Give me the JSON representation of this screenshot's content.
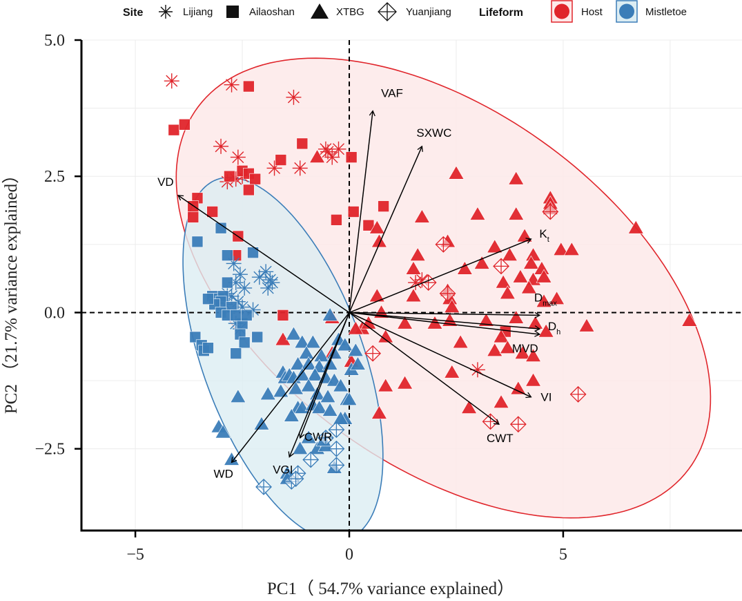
{
  "chart_data": {
    "type": "scatter",
    "subtype": "pca-biplot",
    "title": "",
    "xlabel": "PC1（ 54.7% variance explained）",
    "ylabel": "PC2 （21.7% variance explained）",
    "xlim": [
      -6.26,
      9.18
    ],
    "ylim": [
      -4.0,
      5.0
    ],
    "x_ticks": [
      -5,
      0,
      5
    ],
    "x_tick_labels": [
      "−5",
      "0",
      "5"
    ],
    "y_ticks": [
      -2.5,
      0.0,
      2.5,
      5.0
    ],
    "y_tick_labels": [
      "−2.5",
      "0.0",
      "2.5",
      "5.0"
    ],
    "grid": true,
    "reference_lines": {
      "x": 0,
      "y": 0,
      "style": "dashed"
    },
    "colors": {
      "Host": "#e0252b",
      "Mistletoe": "#3b7db8",
      "host_fill": "#fde9e9",
      "mistletoe_fill": "#dcedf3"
    },
    "legend": {
      "placement": "top",
      "site_title": "Site",
      "sites": [
        {
          "label": "Lijiang",
          "shape": "asterisk"
        },
        {
          "label": "Ailaoshan",
          "shape": "square"
        },
        {
          "label": "XTBG",
          "shape": "triangle"
        },
        {
          "label": "Yuanjiang",
          "shape": "diamond-plus"
        }
      ],
      "lifeform_title": "Lifeform",
      "lifeforms": [
        {
          "label": "Host",
          "color": "#e0252b"
        },
        {
          "label": "Mistletoe",
          "color": "#3b7db8"
        }
      ]
    },
    "ellipses": [
      {
        "group": "Host",
        "center": [
          2.2,
          0.45
        ],
        "semi_major": 6.7,
        "semi_minor": 3.45,
        "angle_deg": -25
      },
      {
        "group": "Mistletoe",
        "center": [
          -1.55,
          -0.85
        ],
        "semi_major": 3.65,
        "semi_minor": 1.8,
        "angle_deg": -62
      }
    ],
    "loadings": [
      {
        "label": "VAF",
        "sub": "",
        "x": 0.55,
        "y": 3.7
      },
      {
        "label": "SXWC",
        "sub": "",
        "x": 1.7,
        "y": 3.05
      },
      {
        "label": "VD",
        "sub": "",
        "x": -4.0,
        "y": 2.15
      },
      {
        "label": "K",
        "sub": "t",
        "x": 4.25,
        "y": 1.35
      },
      {
        "label": "D",
        "sub": "max",
        "x": 4.45,
        "y": -0.05
      },
      {
        "label": "D",
        "sub": "h",
        "x": 4.45,
        "y": -0.3
      },
      {
        "label": "MVD",
        "sub": "",
        "x": 4.45,
        "y": -0.4
      },
      {
        "label": "VI",
        "sub": "",
        "x": 4.25,
        "y": -1.55
      },
      {
        "label": "CWT",
        "sub": "",
        "x": 3.5,
        "y": -2.05
      },
      {
        "label": "CWR",
        "sub": "",
        "x": -1.15,
        "y": -2.3
      },
      {
        "label": "VGI",
        "sub": "",
        "x": -1.4,
        "y": -2.65
      },
      {
        "label": "WD",
        "sub": "",
        "x": -2.75,
        "y": -2.75
      }
    ],
    "series": [
      {
        "name": "Host-Lijiang",
        "lifeform": "Host",
        "site": "Lijiang",
        "points": [
          [
            -4.15,
            4.25
          ],
          [
            -2.75,
            4.18
          ],
          [
            -1.3,
            3.95
          ],
          [
            -3.0,
            3.05
          ],
          [
            -2.6,
            2.85
          ],
          [
            -1.15,
            2.65
          ],
          [
            -1.75,
            2.65
          ],
          [
            -0.55,
            3.0
          ],
          [
            -0.4,
            2.85
          ],
          [
            -2.5,
            2.5
          ],
          [
            -2.85,
            2.4
          ],
          [
            -2.65,
            2.45
          ],
          [
            -0.5,
            2.95
          ],
          [
            -0.25,
            3.0
          ],
          [
            1.55,
            0.55
          ],
          [
            1.7,
            0.6
          ],
          [
            3.0,
            -1.05
          ]
        ]
      },
      {
        "name": "Host-Ailaoshan",
        "lifeform": "Host",
        "site": "Ailaoshan",
        "points": [
          [
            -4.1,
            3.35
          ],
          [
            -3.85,
            3.45
          ],
          [
            -2.35,
            4.15
          ],
          [
            -1.1,
            3.1
          ],
          [
            -1.6,
            2.8
          ],
          [
            -2.8,
            2.5
          ],
          [
            -2.5,
            2.6
          ],
          [
            -2.35,
            2.55
          ],
          [
            -2.2,
            2.45
          ],
          [
            -2.35,
            2.25
          ],
          [
            -3.55,
            2.1
          ],
          [
            -3.65,
            1.95
          ],
          [
            -3.2,
            1.85
          ],
          [
            -3.65,
            1.75
          ],
          [
            0.05,
            2.85
          ],
          [
            0.1,
            1.85
          ],
          [
            -0.3,
            1.7
          ],
          [
            0.8,
            1.95
          ],
          [
            0.45,
            1.6
          ],
          [
            -2.6,
            1.4
          ],
          [
            -2.65,
            1.05
          ],
          [
            -1.55,
            -0.05
          ],
          [
            3.65,
            -0.35
          ]
        ]
      },
      {
        "name": "Host-XTBG",
        "lifeform": "Host",
        "site": "XTBG",
        "points": [
          [
            -0.75,
            2.85
          ],
          [
            2.5,
            2.55
          ],
          [
            3.9,
            2.45
          ],
          [
            4.7,
            2.1
          ],
          [
            4.7,
            2.0
          ],
          [
            4.7,
            1.9
          ],
          [
            3.0,
            1.8
          ],
          [
            3.9,
            1.8
          ],
          [
            1.7,
            1.75
          ],
          [
            4.1,
            1.4
          ],
          [
            6.7,
            1.55
          ],
          [
            0.65,
            1.55
          ],
          [
            2.3,
            1.3
          ],
          [
            3.4,
            1.2
          ],
          [
            0.7,
            1.3
          ],
          [
            1.6,
            1.05
          ],
          [
            4.3,
            1.05
          ],
          [
            3.75,
            1.05
          ],
          [
            4.95,
            1.15
          ],
          [
            5.2,
            1.15
          ],
          [
            2.7,
            0.8
          ],
          [
            3.1,
            0.9
          ],
          [
            1.5,
            0.8
          ],
          [
            4.25,
            0.9
          ],
          [
            4.5,
            0.8
          ],
          [
            2.3,
            0.4
          ],
          [
            4.0,
            0.65
          ],
          [
            4.3,
            0.6
          ],
          [
            4.55,
            0.65
          ],
          [
            3.6,
            0.55
          ],
          [
            4.2,
            0.45
          ],
          [
            0.65,
            0.3
          ],
          [
            1.5,
            0.3
          ],
          [
            2.35,
            0.25
          ],
          [
            3.7,
            0.35
          ],
          [
            4.85,
            0.25
          ],
          [
            4.55,
            0.2
          ],
          [
            2.4,
            0.1
          ],
          [
            3.9,
            -0.1
          ],
          [
            0.75,
            0.0
          ],
          [
            1.3,
            -0.2
          ],
          [
            2.0,
            -0.2
          ],
          [
            2.35,
            -0.15
          ],
          [
            3.2,
            -0.15
          ],
          [
            3.55,
            -0.45
          ],
          [
            4.35,
            -0.2
          ],
          [
            5.55,
            -0.25
          ],
          [
            7.95,
            -0.15
          ],
          [
            0.3,
            -0.3
          ],
          [
            0.85,
            -0.45
          ],
          [
            2.6,
            -0.55
          ],
          [
            3.4,
            -0.7
          ],
          [
            4.6,
            -0.35
          ],
          [
            3.7,
            -0.65
          ],
          [
            4.05,
            -0.75
          ],
          [
            4.3,
            -0.8
          ],
          [
            -1.55,
            -0.5
          ],
          [
            -0.4,
            -0.1
          ],
          [
            0.15,
            -0.3
          ],
          [
            -0.4,
            -0.75
          ],
          [
            0.05,
            -0.9
          ],
          [
            1.3,
            -1.3
          ],
          [
            2.4,
            -1.1
          ],
          [
            0.85,
            -1.35
          ],
          [
            3.95,
            -1.4
          ],
          [
            4.3,
            -1.25
          ],
          [
            3.55,
            -1.65
          ],
          [
            2.8,
            -1.75
          ],
          [
            0.7,
            -1.85
          ],
          [
            0.45,
            -0.2
          ]
        ]
      },
      {
        "name": "Host-Yuanjiang",
        "lifeform": "Host",
        "site": "Yuanjiang",
        "points": [
          [
            4.7,
            1.85
          ],
          [
            2.2,
            1.25
          ],
          [
            3.55,
            0.85
          ],
          [
            2.3,
            0.35
          ],
          [
            0.55,
            -0.75
          ],
          [
            5.35,
            -1.5
          ],
          [
            3.3,
            -2.0
          ],
          [
            3.95,
            -2.05
          ],
          [
            1.85,
            0.55
          ]
        ]
      },
      {
        "name": "Mistletoe-Lijiang",
        "lifeform": "Mistletoe",
        "site": "Lijiang",
        "points": [
          [
            -2.7,
            0.9
          ],
          [
            -1.95,
            0.75
          ],
          [
            -2.1,
            0.65
          ],
          [
            -1.85,
            0.6
          ],
          [
            -1.8,
            0.55
          ],
          [
            -1.9,
            0.45
          ],
          [
            -2.55,
            0.7
          ],
          [
            -2.65,
            0.55
          ],
          [
            -2.45,
            0.45
          ],
          [
            -2.85,
            0.35
          ],
          [
            -2.75,
            0.3
          ],
          [
            -2.6,
            0.2
          ],
          [
            -2.9,
            0.15
          ],
          [
            -2.5,
            0.1
          ],
          [
            -2.25,
            0.05
          ],
          [
            -2.55,
            -0.3
          ],
          [
            -2.65,
            -0.2
          ]
        ]
      },
      {
        "name": "Mistletoe-Ailaoshan",
        "lifeform": "Mistletoe",
        "site": "Ailaoshan",
        "points": [
          [
            -3.0,
            1.55
          ],
          [
            -3.55,
            1.3
          ],
          [
            -2.25,
            1.1
          ],
          [
            -2.85,
            1.05
          ],
          [
            -2.85,
            0.55
          ],
          [
            -3.2,
            0.3
          ],
          [
            -3.05,
            0.25
          ],
          [
            -2.95,
            0.3
          ],
          [
            -3.0,
            0.2
          ],
          [
            -3.15,
            0.15
          ],
          [
            -3.3,
            0.25
          ],
          [
            -2.75,
            0.1
          ],
          [
            -3.0,
            0.0
          ],
          [
            -2.85,
            -0.05
          ],
          [
            -2.5,
            -0.2
          ],
          [
            -2.65,
            -0.05
          ],
          [
            -2.4,
            -0.05
          ],
          [
            -3.6,
            -0.45
          ],
          [
            -3.45,
            -0.6
          ],
          [
            -3.4,
            -0.7
          ],
          [
            -3.3,
            -0.65
          ],
          [
            -2.55,
            -0.4
          ],
          [
            -2.45,
            -0.55
          ],
          [
            -2.65,
            -0.75
          ],
          [
            -2.15,
            -0.45
          ]
        ]
      },
      {
        "name": "Mistletoe-XTBG",
        "lifeform": "Mistletoe",
        "site": "XTBG",
        "points": [
          [
            -0.45,
            -0.05
          ],
          [
            -1.3,
            -0.4
          ],
          [
            -1.1,
            -0.55
          ],
          [
            -0.85,
            -0.55
          ],
          [
            -1.0,
            -0.75
          ],
          [
            -0.65,
            -0.8
          ],
          [
            -0.35,
            -0.75
          ],
          [
            -0.25,
            -0.5
          ],
          [
            -0.1,
            -0.6
          ],
          [
            0.15,
            -0.7
          ],
          [
            -1.2,
            -0.95
          ],
          [
            -0.95,
            -0.95
          ],
          [
            -0.7,
            -1.0
          ],
          [
            -0.45,
            -0.95
          ],
          [
            -1.55,
            -1.1
          ],
          [
            -1.5,
            -1.2
          ],
          [
            -1.4,
            -1.15
          ],
          [
            -1.3,
            -1.2
          ],
          [
            -1.1,
            -1.15
          ],
          [
            -0.8,
            -1.15
          ],
          [
            -0.55,
            -1.2
          ],
          [
            -0.35,
            -1.25
          ],
          [
            0.05,
            -1.05
          ],
          [
            0.2,
            -0.95
          ],
          [
            -1.9,
            -1.5
          ],
          [
            -1.6,
            -1.45
          ],
          [
            -1.25,
            -1.4
          ],
          [
            -0.95,
            -1.35
          ],
          [
            -0.75,
            -1.5
          ],
          [
            -0.5,
            -1.55
          ],
          [
            -0.2,
            -1.35
          ],
          [
            -0.05,
            -1.6
          ],
          [
            -2.6,
            -1.55
          ],
          [
            -1.2,
            -1.75
          ],
          [
            -1.1,
            -1.75
          ],
          [
            -0.85,
            -1.7
          ],
          [
            -0.7,
            -1.75
          ],
          [
            -0.45,
            -1.8
          ],
          [
            -0.1,
            -1.95
          ],
          [
            -1.35,
            -1.9
          ],
          [
            -3.05,
            -2.1
          ],
          [
            -2.95,
            -2.2
          ],
          [
            -2.05,
            -2.05
          ],
          [
            -2.75,
            -2.7
          ],
          [
            -1.15,
            -2.5
          ],
          [
            -0.75,
            -2.5
          ],
          [
            -0.55,
            -2.45
          ],
          [
            -0.6,
            -2.35
          ],
          [
            -0.95,
            -2.3
          ],
          [
            -0.35,
            -2.85
          ],
          [
            -1.45,
            -2.95
          ],
          [
            -1.45,
            -3.05
          ],
          [
            -0.2,
            -1.95
          ],
          [
            0.0,
            -1.6
          ]
        ]
      },
      {
        "name": "Mistletoe-Yuanjiang",
        "lifeform": "Mistletoe",
        "site": "Yuanjiang",
        "points": [
          [
            -0.3,
            -2.15
          ],
          [
            -0.55,
            -2.3
          ],
          [
            -0.3,
            -2.5
          ],
          [
            -0.9,
            -2.7
          ],
          [
            -0.3,
            -2.8
          ],
          [
            -1.2,
            -2.95
          ],
          [
            -1.35,
            -3.1
          ],
          [
            -1.25,
            -3.05
          ],
          [
            -2.0,
            -3.2
          ]
        ]
      }
    ]
  }
}
